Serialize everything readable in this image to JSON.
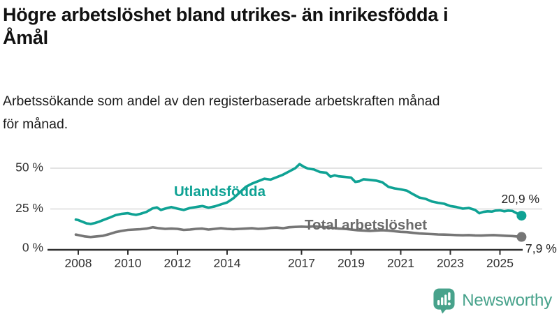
{
  "header": {
    "title_lines": [
      "Högre arbetslöshet bland utrikes- än inrikesfödda i",
      "Åmål"
    ],
    "subtitle_lines": [
      "Arbetssökande som andel av den registerbaserade arbetskraften månad",
      "för månad."
    ]
  },
  "logo": {
    "text": "Newsworthy",
    "icon": "newsworthy-chart-bubble-icon",
    "color": "#47A28B"
  },
  "colors": {
    "accent_teal": "#0FA294",
    "series_gray": "#767676",
    "axis": "#2F2F2F",
    "gridline": "#DADADA",
    "text_dark": "#111111"
  },
  "chart_data": {
    "type": "line",
    "title": "Högre arbetslöshet bland utrikes- än inrikesfödda i Åmål",
    "subtitle": "Arbetssökande som andel av den registerbaserade arbetskraften månad för månad.",
    "unit": "%",
    "xlabel": "",
    "ylabel": "",
    "grid": "horizontal",
    "legend_position": "inline-labels",
    "xlim": [
      2007.8,
      2026.0
    ],
    "ylim": [
      0,
      55
    ],
    "x_ticks": [
      2008,
      2010,
      2012,
      2014,
      2017,
      2019,
      2021,
      2023,
      2025
    ],
    "y_ticks": [
      {
        "value": 0,
        "label": "0 %"
      },
      {
        "value": 25,
        "label": "25 %"
      },
      {
        "value": 50,
        "label": "50 %"
      }
    ],
    "series": [
      {
        "name": "Utlandsfödda",
        "color": "#0FA294",
        "end_value": 20.9,
        "end_label": "20,9 %",
        "points": [
          [
            2007.9,
            18.5
          ],
          [
            2008.0,
            18.2
          ],
          [
            2008.17,
            17.2
          ],
          [
            2008.33,
            16.2
          ],
          [
            2008.5,
            15.8
          ],
          [
            2008.67,
            16.4
          ],
          [
            2008.83,
            17.2
          ],
          [
            2009.0,
            18.2
          ],
          [
            2009.25,
            19.6
          ],
          [
            2009.5,
            21.2
          ],
          [
            2009.75,
            22.0
          ],
          [
            2010.0,
            22.4
          ],
          [
            2010.17,
            21.8
          ],
          [
            2010.33,
            21.4
          ],
          [
            2010.5,
            22.0
          ],
          [
            2010.75,
            23.2
          ],
          [
            2011.0,
            25.4
          ],
          [
            2011.17,
            26.0
          ],
          [
            2011.33,
            24.4
          ],
          [
            2011.5,
            25.2
          ],
          [
            2011.75,
            26.2
          ],
          [
            2012.0,
            25.2
          ],
          [
            2012.25,
            24.4
          ],
          [
            2012.5,
            25.6
          ],
          [
            2012.75,
            26.2
          ],
          [
            2013.0,
            26.8
          ],
          [
            2013.25,
            25.8
          ],
          [
            2013.5,
            26.6
          ],
          [
            2013.75,
            27.8
          ],
          [
            2014.0,
            29.0
          ],
          [
            2014.25,
            31.5
          ],
          [
            2014.5,
            35.0
          ],
          [
            2014.75,
            38.5
          ],
          [
            2015.0,
            40.5
          ],
          [
            2015.25,
            42.0
          ],
          [
            2015.5,
            43.5
          ],
          [
            2015.75,
            43.0
          ],
          [
            2016.0,
            44.5
          ],
          [
            2016.25,
            46.0
          ],
          [
            2016.5,
            48.0
          ],
          [
            2016.75,
            50.0
          ],
          [
            2016.92,
            52.5
          ],
          [
            2017.08,
            51.0
          ],
          [
            2017.25,
            49.8
          ],
          [
            2017.5,
            49.2
          ],
          [
            2017.75,
            47.6
          ],
          [
            2018.0,
            47.2
          ],
          [
            2018.17,
            44.8
          ],
          [
            2018.33,
            45.6
          ],
          [
            2018.5,
            45.0
          ],
          [
            2018.75,
            44.6
          ],
          [
            2019.0,
            44.2
          ],
          [
            2019.17,
            41.6
          ],
          [
            2019.33,
            42.0
          ],
          [
            2019.5,
            43.2
          ],
          [
            2019.75,
            42.8
          ],
          [
            2020.0,
            42.4
          ],
          [
            2020.25,
            41.4
          ],
          [
            2020.5,
            38.6
          ],
          [
            2020.75,
            37.6
          ],
          [
            2021.0,
            37.0
          ],
          [
            2021.25,
            36.2
          ],
          [
            2021.5,
            34.0
          ],
          [
            2021.75,
            32.0
          ],
          [
            2022.0,
            31.2
          ],
          [
            2022.25,
            29.6
          ],
          [
            2022.5,
            28.8
          ],
          [
            2022.75,
            28.2
          ],
          [
            2023.0,
            26.8
          ],
          [
            2023.25,
            26.2
          ],
          [
            2023.5,
            25.2
          ],
          [
            2023.75,
            25.6
          ],
          [
            2024.0,
            24.4
          ],
          [
            2024.17,
            22.4
          ],
          [
            2024.33,
            23.2
          ],
          [
            2024.5,
            23.6
          ],
          [
            2024.67,
            23.4
          ],
          [
            2024.83,
            24.0
          ],
          [
            2025.0,
            24.2
          ],
          [
            2025.17,
            23.6
          ],
          [
            2025.33,
            24.0
          ],
          [
            2025.5,
            23.8
          ],
          [
            2025.65,
            22.6
          ],
          [
            2025.87,
            20.9
          ]
        ]
      },
      {
        "name": "Total arbetslöshet",
        "color": "#767676",
        "end_value": 7.9,
        "end_label": "7,9 %",
        "points": [
          [
            2007.9,
            9.3
          ],
          [
            2008.0,
            9.0
          ],
          [
            2008.25,
            8.2
          ],
          [
            2008.5,
            7.8
          ],
          [
            2008.75,
            8.2
          ],
          [
            2009.0,
            8.6
          ],
          [
            2009.25,
            9.6
          ],
          [
            2009.5,
            10.8
          ],
          [
            2009.75,
            11.6
          ],
          [
            2010.0,
            12.2
          ],
          [
            2010.25,
            12.4
          ],
          [
            2010.5,
            12.6
          ],
          [
            2010.75,
            13.0
          ],
          [
            2011.0,
            13.8
          ],
          [
            2011.25,
            13.2
          ],
          [
            2011.5,
            12.8
          ],
          [
            2011.75,
            13.0
          ],
          [
            2012.0,
            12.8
          ],
          [
            2012.25,
            12.2
          ],
          [
            2012.5,
            12.4
          ],
          [
            2012.75,
            12.8
          ],
          [
            2013.0,
            13.0
          ],
          [
            2013.25,
            12.4
          ],
          [
            2013.5,
            12.8
          ],
          [
            2013.75,
            13.2
          ],
          [
            2014.0,
            12.8
          ],
          [
            2014.25,
            12.6
          ],
          [
            2014.5,
            12.8
          ],
          [
            2014.75,
            13.0
          ],
          [
            2015.0,
            13.2
          ],
          [
            2015.25,
            12.8
          ],
          [
            2015.5,
            13.0
          ],
          [
            2015.75,
            13.4
          ],
          [
            2016.0,
            13.6
          ],
          [
            2016.25,
            13.2
          ],
          [
            2016.5,
            13.8
          ],
          [
            2016.75,
            14.0
          ],
          [
            2017.0,
            14.2
          ],
          [
            2017.25,
            14.0
          ],
          [
            2017.5,
            14.4
          ],
          [
            2017.75,
            14.0
          ],
          [
            2018.0,
            13.8
          ],
          [
            2018.25,
            13.4
          ],
          [
            2018.5,
            13.0
          ],
          [
            2018.75,
            12.8
          ],
          [
            2019.0,
            12.4
          ],
          [
            2019.25,
            12.0
          ],
          [
            2019.5,
            11.8
          ],
          [
            2019.75,
            11.6
          ],
          [
            2020.0,
            11.8
          ],
          [
            2020.25,
            12.0
          ],
          [
            2020.5,
            11.8
          ],
          [
            2020.75,
            11.4
          ],
          [
            2021.0,
            11.0
          ],
          [
            2021.25,
            10.8
          ],
          [
            2021.5,
            10.4
          ],
          [
            2021.75,
            10.0
          ],
          [
            2022.0,
            9.8
          ],
          [
            2022.25,
            9.6
          ],
          [
            2022.5,
            9.4
          ],
          [
            2022.75,
            9.3
          ],
          [
            2023.0,
            9.2
          ],
          [
            2023.25,
            9.0
          ],
          [
            2023.5,
            8.9
          ],
          [
            2023.75,
            9.0
          ],
          [
            2024.0,
            8.8
          ],
          [
            2024.25,
            8.7
          ],
          [
            2024.5,
            8.9
          ],
          [
            2024.75,
            9.0
          ],
          [
            2025.0,
            8.8
          ],
          [
            2025.25,
            8.6
          ],
          [
            2025.5,
            8.4
          ],
          [
            2025.65,
            8.2
          ],
          [
            2025.87,
            7.9
          ]
        ]
      }
    ]
  }
}
